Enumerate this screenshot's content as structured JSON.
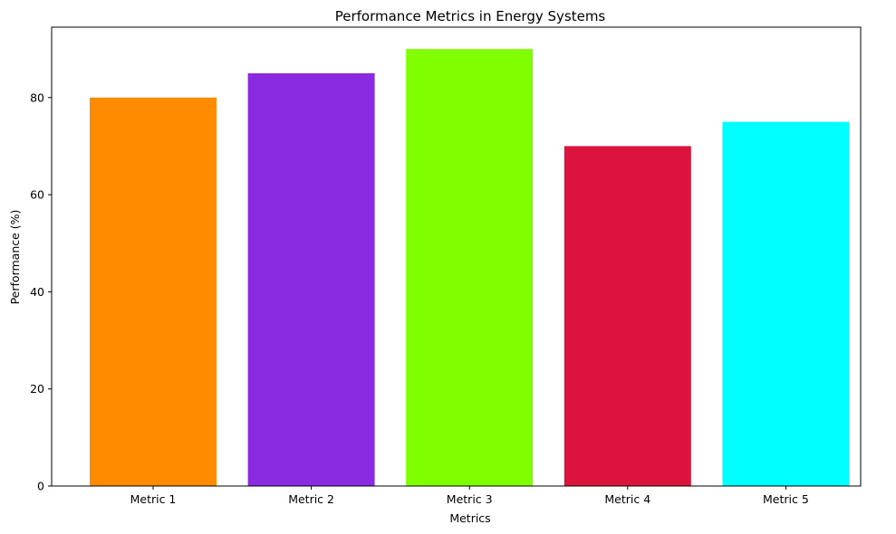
{
  "chart_data": {
    "type": "bar",
    "title": "Performance Metrics in Energy Systems",
    "xlabel": "Metrics",
    "ylabel": "Performance (%)",
    "categories": [
      "Metric 1",
      "Metric 2",
      "Metric 3",
      "Metric 4",
      "Metric 5"
    ],
    "values": [
      80,
      85,
      90,
      70,
      75
    ],
    "colors": [
      "#ff8c00",
      "#8a2be2",
      "#7fff00",
      "#dc143c",
      "#00ffff"
    ],
    "ylim": [
      0,
      94.5
    ],
    "yticks": [
      0,
      20,
      40,
      60,
      80
    ],
    "grid": false,
    "legend": "none"
  }
}
